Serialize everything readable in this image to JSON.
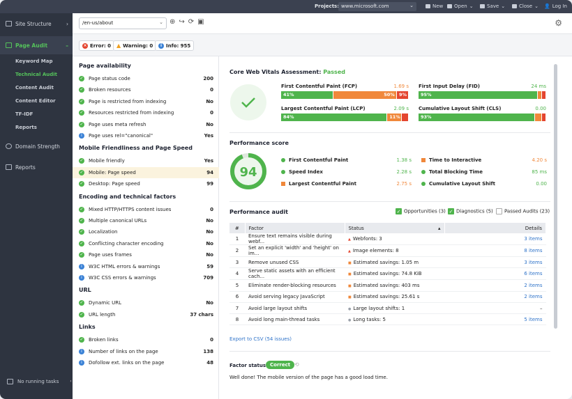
{
  "topbar": {
    "projects_label": "Projects:",
    "project": "www.microsoft.com",
    "new": "New",
    "open": "Open",
    "save": "Save",
    "close": "Close",
    "login": "Log In"
  },
  "sidebar": {
    "site_structure": "Site Structure",
    "page_audit": "Page Audit",
    "sub": [
      "Keyword Map",
      "Technical Audit",
      "Content Audit",
      "Content Editor",
      "TF-IDF",
      "Reports"
    ],
    "domain_strength": "Domain Strength",
    "reports": "Reports",
    "bottom": "No running tasks"
  },
  "url": {
    "value": "/en-us/about"
  },
  "counts": {
    "error": "Error: 0",
    "warning": "Warning: 0",
    "info": "Info: 955"
  },
  "left": {
    "sections": [
      {
        "title": "Page availability",
        "rows": [
          {
            "label": "Page status code",
            "value": "200",
            "icon": "ok"
          },
          {
            "label": "Broken resources",
            "value": "0",
            "icon": "ok"
          },
          {
            "label": "Page is restricted from indexing",
            "value": "No",
            "icon": "ok"
          },
          {
            "label": "Resources restricted from indexing",
            "value": "0",
            "icon": "ok"
          },
          {
            "label": "Page uses meta refresh",
            "value": "No",
            "icon": "ok"
          },
          {
            "label": "Page uses rel=\"canonical\"",
            "value": "Yes",
            "icon": "info"
          }
        ]
      },
      {
        "title": "Mobile Friendliness and Page Speed",
        "rows": [
          {
            "label": "Mobile friendly",
            "value": "Yes",
            "icon": "ok"
          },
          {
            "label": "Mobile: Page speed",
            "value": "94",
            "icon": "ok",
            "selected": true
          },
          {
            "label": "Desktop: Page speed",
            "value": "99",
            "icon": "ok"
          }
        ]
      },
      {
        "title": "Encoding and technical factors",
        "rows": [
          {
            "label": "Mixed HTTP/HTTPS content issues",
            "value": "0",
            "icon": "ok"
          },
          {
            "label": "Multiple canonical URLs",
            "value": "No",
            "icon": "ok"
          },
          {
            "label": "Localization",
            "value": "No",
            "icon": "ok"
          },
          {
            "label": "Conflicting character encoding",
            "value": "No",
            "icon": "ok"
          },
          {
            "label": "Page uses frames",
            "value": "No",
            "icon": "ok"
          },
          {
            "label": "W3C HTML errors & warnings",
            "value": "59",
            "icon": "info"
          },
          {
            "label": "W3C CSS errors & warnings",
            "value": "709",
            "icon": "info"
          }
        ]
      },
      {
        "title": "URL",
        "rows": [
          {
            "label": "Dynamic URL",
            "value": "No",
            "icon": "ok"
          },
          {
            "label": "URL length",
            "value": "37 chars",
            "icon": "ok"
          }
        ]
      },
      {
        "title": "Links",
        "rows": [
          {
            "label": "Broken links",
            "value": "0",
            "icon": "ok"
          },
          {
            "label": "Number of links on the page",
            "value": "138",
            "icon": "info"
          },
          {
            "label": "Dofollow ext. links on the page",
            "value": "48",
            "icon": "info"
          }
        ]
      }
    ]
  },
  "cwv": {
    "title": "Core Web Vitals Assessment:",
    "status": "Passed",
    "metrics": [
      {
        "name": "First Contentful Paint (FCP)",
        "value": "1.69 s",
        "value_color": "#f0883b",
        "segments": [
          {
            "label": "41%",
            "pct": 41,
            "c": "g"
          },
          {
            "label": "50%",
            "pct": 50,
            "c": "o"
          },
          {
            "label": "9%",
            "pct": 9,
            "c": "r"
          }
        ]
      },
      {
        "name": "First Input Delay (FID)",
        "value": "24 ms",
        "value_color": "#4fb44c",
        "segments": [
          {
            "label": "95%",
            "pct": 95,
            "c": "g"
          },
          {
            "label": "",
            "pct": 3,
            "c": "o"
          },
          {
            "label": "",
            "pct": 2,
            "c": "r"
          }
        ]
      },
      {
        "name": "Largest Contentful Paint (LCP)",
        "value": "2.09 s",
        "value_color": "#4fb44c",
        "segments": [
          {
            "label": "84%",
            "pct": 84,
            "c": "g"
          },
          {
            "label": "11%",
            "pct": 11,
            "c": "o"
          },
          {
            "label": "",
            "pct": 5,
            "c": "r"
          }
        ]
      },
      {
        "name": "Cumulative Layout Shift (CLS)",
        "value": "0.00",
        "value_color": "#4fb44c",
        "segments": [
          {
            "label": "93%",
            "pct": 93,
            "c": "g"
          },
          {
            "label": "",
            "pct": 5,
            "c": "o"
          },
          {
            "label": "",
            "pct": 2,
            "c": "r"
          }
        ]
      }
    ]
  },
  "perf": {
    "title": "Performance score",
    "score": "94",
    "score_fraction": 0.94,
    "items": [
      {
        "name": "First Contentful Paint",
        "value": "1.38 s",
        "shape": "circle",
        "color": "#4fb44c"
      },
      {
        "name": "Time to Interactive",
        "value": "4.20 s",
        "shape": "square",
        "color": "#f0883b"
      },
      {
        "name": "Speed Index",
        "value": "2.28 s",
        "shape": "circle",
        "color": "#4fb44c"
      },
      {
        "name": "Total Blocking Time",
        "value": "85 ms",
        "shape": "circle",
        "color": "#4fb44c"
      },
      {
        "name": "Largest Contentful Paint",
        "value": "2.75 s",
        "shape": "square",
        "color": "#f0883b"
      },
      {
        "name": "Cumulative Layout Shift",
        "value": "0.00",
        "shape": "circle",
        "color": "#4fb44c"
      }
    ]
  },
  "audit": {
    "title": "Performance audit",
    "opportunities": "Opportunities (3)",
    "diagnostics": "Diagnostics (5)",
    "passed": "Passed Audits (23)",
    "headers": [
      "#",
      "Factor",
      "Status",
      "Details"
    ],
    "rows": [
      {
        "n": "1",
        "factor": "Ensure text remains visible during webf...",
        "status": "Webfonts: 3",
        "sev": "r",
        "details": "3 items"
      },
      {
        "n": "2",
        "factor": "Set an explicit 'width' and 'height' on im...",
        "status": "Image elements: 8",
        "sev": "r",
        "details": "8 items"
      },
      {
        "n": "3",
        "factor": "Remove unused CSS",
        "status": "Estimated savings: 1.05 m",
        "sev": "o",
        "details": "3 items"
      },
      {
        "n": "4",
        "factor": "Serve static assets with an efficient cach...",
        "status": "Estimated savings: 74.8 KiB",
        "sev": "o",
        "details": "6 items"
      },
      {
        "n": "5",
        "factor": "Eliminate render-blocking resources",
        "status": "Estimated savings: 403 ms",
        "sev": "o",
        "details": "2 items"
      },
      {
        "n": "6",
        "factor": "Avoid serving legacy JavaScript",
        "status": "Estimated savings: 25.61 s",
        "sev": "o",
        "details": "2 items"
      },
      {
        "n": "7",
        "factor": "Avoid large layout shifts",
        "status": "Large layout shifts: 1",
        "sev": "n",
        "details": "–"
      },
      {
        "n": "8",
        "factor": "Avoid long main-thread tasks",
        "status": "Long tasks: 5",
        "sev": "n",
        "details": "5 items"
      }
    ],
    "export": "Export to CSV (54 issues)"
  },
  "factor": {
    "label": "Factor status:",
    "badge": "Correct",
    "message": "Well done! The mobile version of the page has a good load time."
  }
}
